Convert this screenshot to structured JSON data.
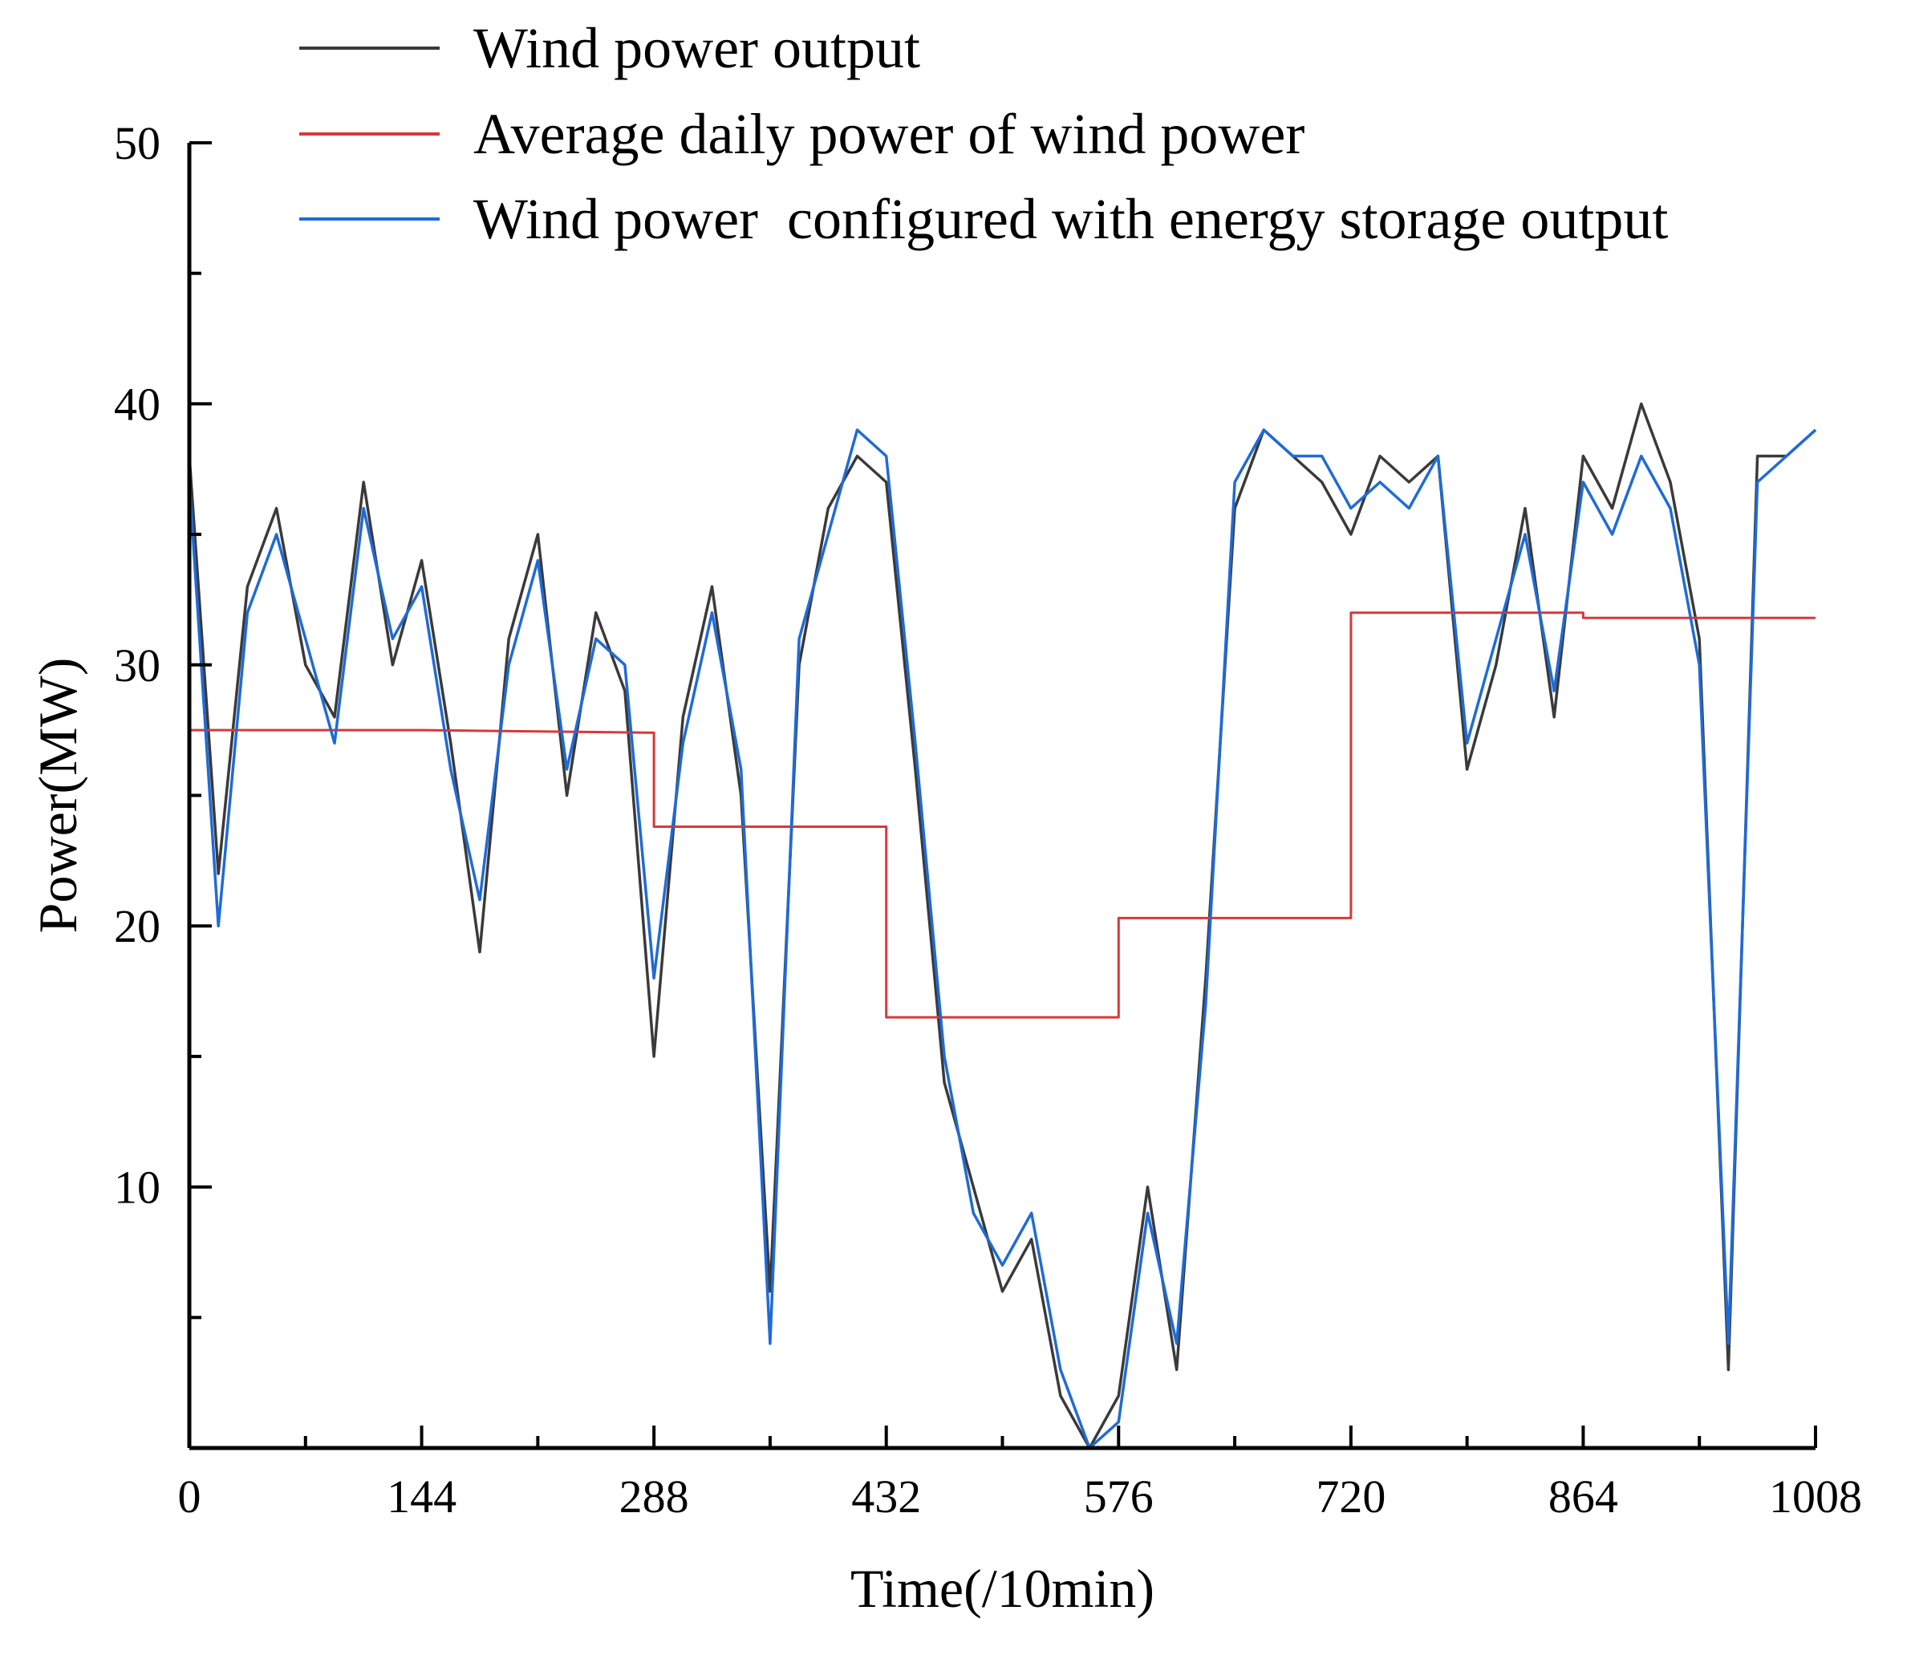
{
  "chart_data": {
    "type": "line",
    "title": "",
    "xlabel": "Time(/10min)",
    "ylabel": "Power(MW)",
    "xlim": [
      0,
      1008
    ],
    "ylim": [
      0,
      50
    ],
    "xticks": [
      0,
      144,
      288,
      432,
      576,
      720,
      864,
      1008
    ],
    "xtick_labels": [
      "0",
      "144",
      "288",
      "432",
      "576",
      "720",
      "864",
      "1008"
    ],
    "yticks": [
      10,
      20,
      30,
      40,
      50
    ],
    "ytick_labels": [
      "10",
      "20",
      "30",
      "40",
      "50"
    ],
    "grid": false,
    "legend_position": "top-left",
    "colors": {
      "wind": "#3a3a3a",
      "average": "#d9383a",
      "storage": "#1f6bd6"
    },
    "series": [
      {
        "key": "wind",
        "name": "Wind power output",
        "x": [
          0,
          18,
          36,
          54,
          72,
          90,
          108,
          126,
          144,
          162,
          180,
          198,
          216,
          234,
          252,
          270,
          288,
          306,
          324,
          342,
          360,
          378,
          396,
          414,
          432,
          450,
          468,
          486,
          504,
          522,
          540,
          558,
          576,
          594,
          612,
          630,
          648,
          666,
          684,
          702,
          720,
          738,
          756,
          774,
          792,
          810,
          828,
          846,
          864,
          882,
          900,
          918,
          936,
          954,
          972,
          990,
          1008
        ],
        "values": [
          38,
          22,
          33,
          36,
          30,
          28,
          37,
          30,
          34,
          27,
          19,
          31,
          35,
          25,
          32,
          29,
          15,
          28,
          33,
          25,
          6,
          30,
          36,
          38,
          37,
          26,
          14,
          10,
          6,
          8,
          2,
          0,
          2,
          10,
          3,
          18,
          36,
          39,
          38,
          37,
          35,
          38,
          37,
          38,
          26,
          30,
          36,
          28,
          38,
          36,
          40,
          37,
          31,
          3,
          38,
          38,
          39
        ]
      },
      {
        "key": "average",
        "name": "Average daily power of wind power",
        "x": [
          0,
          144,
          144,
          288,
          288,
          432,
          432,
          576,
          576,
          720,
          720,
          864,
          864,
          1008
        ],
        "values": [
          27.5,
          27.5,
          27.5,
          27.4,
          23.8,
          23.8,
          16.5,
          16.5,
          20.3,
          20.3,
          32.0,
          32.0,
          31.8,
          31.8
        ]
      },
      {
        "key": "storage",
        "name": "Wind power  configured with energy storage output",
        "x": [
          0,
          18,
          36,
          54,
          72,
          90,
          108,
          126,
          144,
          162,
          180,
          198,
          216,
          234,
          252,
          270,
          288,
          306,
          324,
          342,
          360,
          378,
          396,
          414,
          432,
          450,
          468,
          486,
          504,
          522,
          540,
          558,
          576,
          594,
          612,
          630,
          648,
          666,
          684,
          702,
          720,
          738,
          756,
          774,
          792,
          810,
          828,
          846,
          864,
          882,
          900,
          918,
          936,
          954,
          972,
          990,
          1008
        ],
        "values": [
          37,
          20,
          32,
          35,
          31,
          27,
          36,
          31,
          33,
          26,
          21,
          30,
          34,
          26,
          31,
          30,
          18,
          27,
          32,
          26,
          4,
          31,
          35,
          39,
          38,
          27,
          15,
          9,
          7,
          9,
          3,
          0,
          1,
          9,
          4,
          17,
          37,
          39,
          38,
          38,
          36,
          37,
          36,
          38,
          27,
          31,
          35,
          29,
          37,
          35,
          38,
          36,
          30,
          4,
          37,
          38,
          39
        ]
      }
    ]
  }
}
